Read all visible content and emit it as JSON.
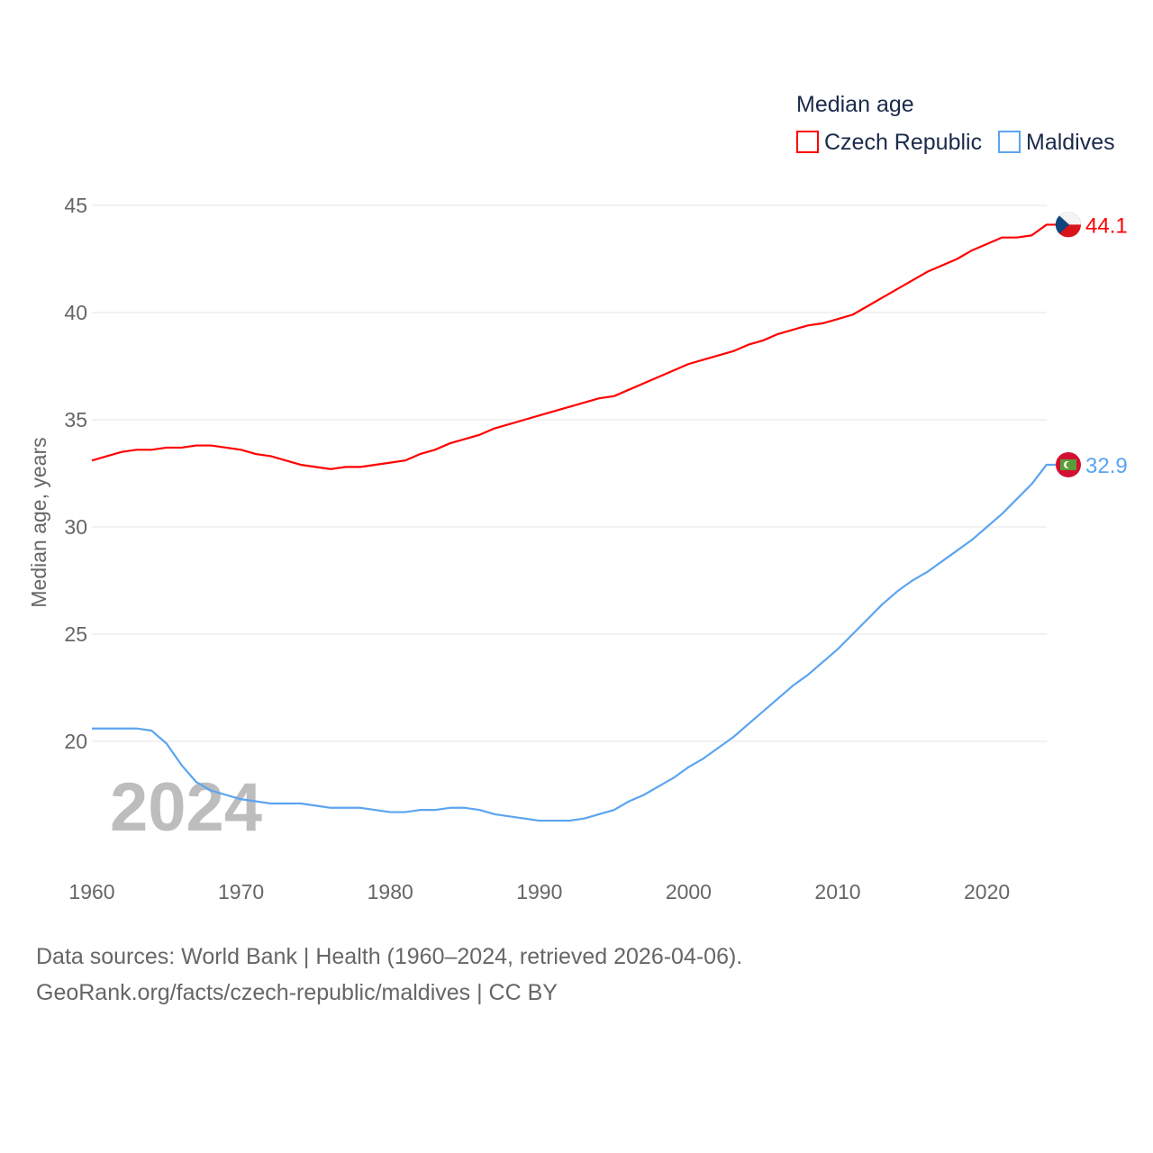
{
  "chart_data": {
    "type": "line",
    "title": "",
    "ylabel": "Median age, years",
    "xlabel": "",
    "ylim": [
      15,
      45
    ],
    "xlim": [
      1960,
      2024
    ],
    "yticks": [
      20,
      25,
      30,
      35,
      40,
      45
    ],
    "xticks": [
      1960,
      1970,
      1980,
      1990,
      2000,
      2010,
      2020
    ],
    "grid": true,
    "legend_title": "Median age",
    "legend_position": "top-right",
    "year_overlay": "2024",
    "x": [
      1960,
      1961,
      1962,
      1963,
      1964,
      1965,
      1966,
      1967,
      1968,
      1969,
      1970,
      1971,
      1972,
      1973,
      1974,
      1975,
      1976,
      1977,
      1978,
      1979,
      1980,
      1981,
      1982,
      1983,
      1984,
      1985,
      1986,
      1987,
      1988,
      1989,
      1990,
      1991,
      1992,
      1993,
      1994,
      1995,
      1996,
      1997,
      1998,
      1999,
      2000,
      2001,
      2002,
      2003,
      2004,
      2005,
      2006,
      2007,
      2008,
      2009,
      2010,
      2011,
      2012,
      2013,
      2014,
      2015,
      2016,
      2017,
      2018,
      2019,
      2020,
      2021,
      2022,
      2023,
      2024
    ],
    "series": [
      {
        "name": "Czech Republic",
        "color": "#ff0000",
        "end_label": "44.1",
        "flag": "czech-flag",
        "values": [
          33.1,
          33.3,
          33.5,
          33.6,
          33.6,
          33.7,
          33.7,
          33.8,
          33.8,
          33.7,
          33.6,
          33.4,
          33.3,
          33.1,
          32.9,
          32.8,
          32.7,
          32.8,
          32.8,
          32.9,
          33.0,
          33.1,
          33.4,
          33.6,
          33.9,
          34.1,
          34.3,
          34.6,
          34.8,
          35.0,
          35.2,
          35.4,
          35.6,
          35.8,
          36.0,
          36.1,
          36.4,
          36.7,
          37.0,
          37.3,
          37.6,
          37.8,
          38.0,
          38.2,
          38.5,
          38.7,
          39.0,
          39.2,
          39.4,
          39.5,
          39.7,
          39.9,
          40.3,
          40.7,
          41.1,
          41.5,
          41.9,
          42.2,
          42.5,
          42.9,
          43.2,
          43.5,
          43.5,
          43.6,
          44.1
        ]
      },
      {
        "name": "Maldives",
        "color": "#5ba4f0",
        "end_label": "32.9",
        "flag": "maldives-flag",
        "values": [
          20.6,
          20.6,
          20.6,
          20.6,
          20.5,
          19.9,
          18.9,
          18.1,
          17.7,
          17.5,
          17.3,
          17.2,
          17.1,
          17.1,
          17.1,
          17.0,
          16.9,
          16.9,
          16.9,
          16.8,
          16.7,
          16.7,
          16.8,
          16.8,
          16.9,
          16.9,
          16.8,
          16.6,
          16.5,
          16.4,
          16.3,
          16.3,
          16.3,
          16.4,
          16.6,
          16.8,
          17.2,
          17.5,
          17.9,
          18.3,
          18.8,
          19.2,
          19.7,
          20.2,
          20.8,
          21.4,
          22.0,
          22.6,
          23.1,
          23.7,
          24.3,
          25.0,
          25.7,
          26.4,
          27.0,
          27.5,
          27.9,
          28.4,
          28.9,
          29.4,
          30.0,
          30.6,
          31.3,
          32.0,
          32.9
        ]
      }
    ]
  },
  "footer": {
    "line1": "Data sources: World Bank | Health (1960–2024, retrieved 2026-04-06).",
    "line2": "GeoRank.org/facts/czech-republic/maldives | CC BY"
  }
}
